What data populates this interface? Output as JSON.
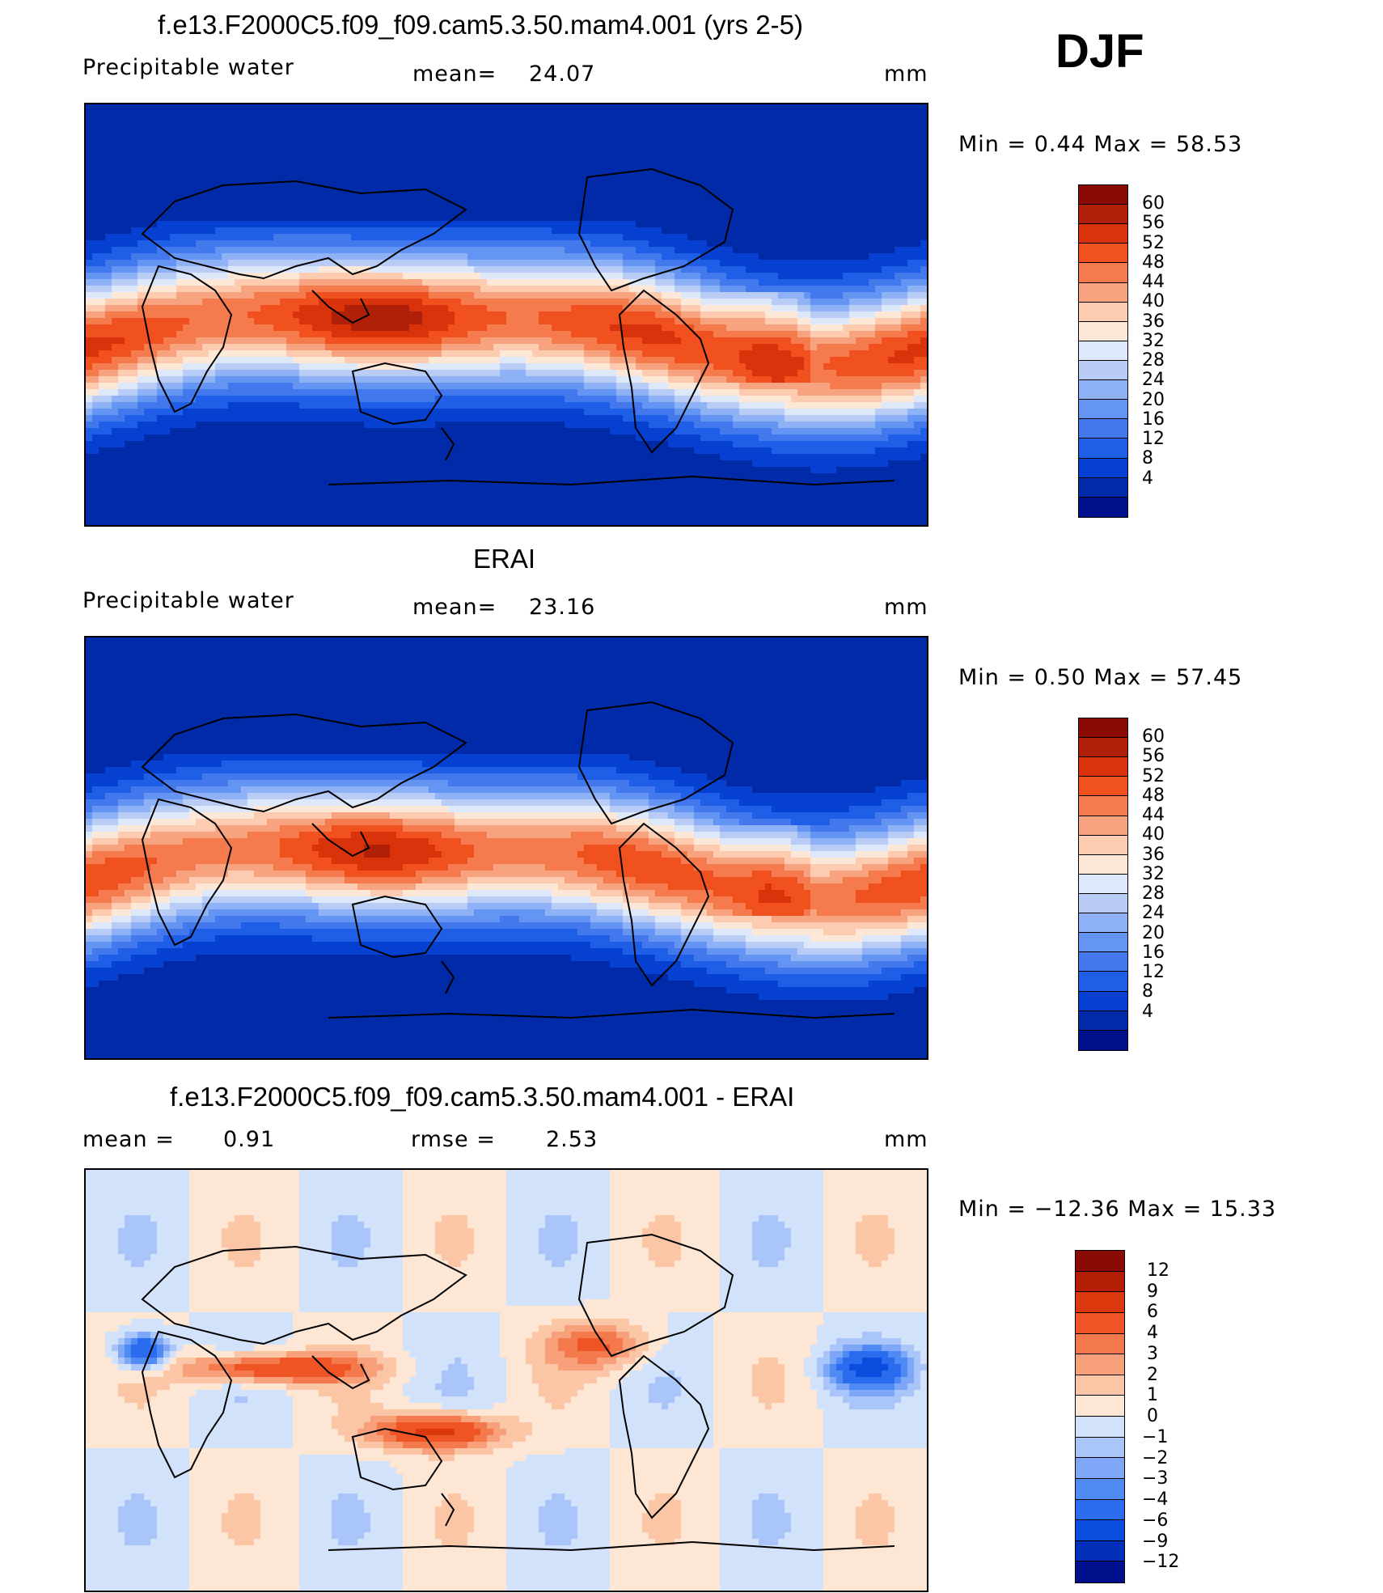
{
  "season": "DJF",
  "colors": {
    "abs_scale": [
      "#000f8c",
      "#002aa8",
      "#0540d0",
      "#1f5ee6",
      "#4278ec",
      "#6495f2",
      "#8fb1f5",
      "#b9ccf6",
      "#dde8fb",
      "#fde8d8",
      "#fccbb0",
      "#f7a37f",
      "#f57a4d",
      "#f0511f",
      "#d9330c",
      "#b01f08",
      "#8a0a05"
    ],
    "diff_scale": [
      "#000f8c",
      "#0230b8",
      "#0a4ee0",
      "#2b6cef",
      "#4f8bf3",
      "#7ea8f7",
      "#a9c5f9",
      "#d3e2fb",
      "#fde6d4",
      "#fbc6a6",
      "#f7a07a",
      "#f47a4e",
      "#ef5424",
      "#dc380e",
      "#b41e07",
      "#8a0a05"
    ],
    "coast": "#000000"
  },
  "panels": [
    {
      "title": "f.e13.F2000C5.f09_f09.cam5.3.50.mam4.001 (yrs 2-5)",
      "left_label": "Precipitable  water",
      "stat_label": "mean=",
      "stat_value": "24.07",
      "units": "mm",
      "minmax": "Min  =     0.44  Max  =    58.53",
      "map_name": "model-precipitable-water-map",
      "levels": [
        "60",
        "56",
        "52",
        "48",
        "44",
        "40",
        "36",
        "32",
        "28",
        "24",
        "20",
        "16",
        "12",
        "8",
        "4"
      ]
    },
    {
      "title": "ERAI",
      "left_label": "Precipitable  water",
      "stat_label": "mean=",
      "stat_value": "23.16",
      "units": "mm",
      "minmax": "Min  =     0.50  Max  =    57.45",
      "map_name": "erai-precipitable-water-map",
      "levels": [
        "60",
        "56",
        "52",
        "48",
        "44",
        "40",
        "36",
        "32",
        "28",
        "24",
        "20",
        "16",
        "12",
        "8",
        "4"
      ]
    },
    {
      "title": "f.e13.F2000C5.f09_f09.cam5.3.50.mam4.001 - ERAI",
      "left_label": "mean  =",
      "left_value": "0.91",
      "stat_label": "rmse  =",
      "stat_value": "2.53",
      "units": "mm",
      "minmax": "Min  = −12.36  Max  =    15.33",
      "map_name": "difference-map",
      "levels": [
        "12",
        "9",
        "6",
        "4",
        "3",
        "2",
        "1",
        "0",
        "−1",
        "−2",
        "−3",
        "−4",
        "−6",
        "−9",
        "−12"
      ]
    }
  ]
}
